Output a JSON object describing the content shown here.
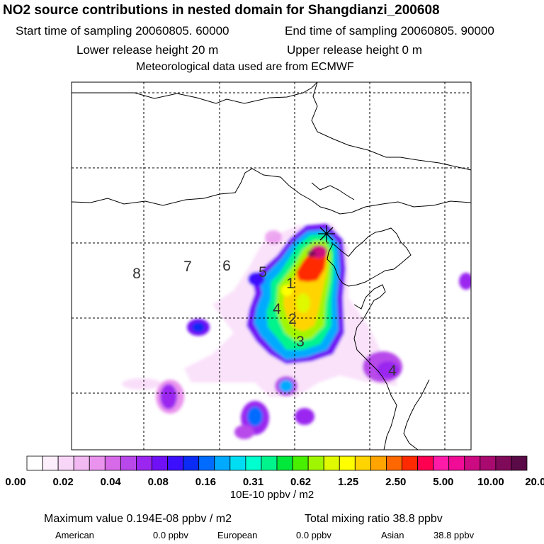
{
  "header": {
    "title": "NO2 source contributions in nested domain for Shangdianzi_200608",
    "start_time": "Start time of sampling 20060805. 60000",
    "end_time": "End time of sampling 20060805. 90000",
    "lower_height": "Lower release height   20 m",
    "upper_height": "Upper release height    0 m",
    "meteo": "Meteorological data used are from ECMWF"
  },
  "chart_data": {
    "type": "heatmap",
    "title": "NO2 source contributions in nested domain for Shangdianzi_200608",
    "colorbar": {
      "unit_label": "10E-10 ppbv / m2",
      "tick_labels": [
        "0.00",
        "0.02",
        "0.04",
        "0.08",
        "0.16",
        "0.31",
        "0.62",
        "1.25",
        "2.50",
        "5.00",
        "10.00",
        "20.00"
      ],
      "colors": [
        "#ffffff",
        "#fdeefc",
        "#f8d6f8",
        "#f2b8f2",
        "#ea93ee",
        "#d66ae8",
        "#b848ea",
        "#9a26f0",
        "#7010f6",
        "#3c10ff",
        "#0a2cf4",
        "#006cff",
        "#00aaff",
        "#00ddf2",
        "#00ffce",
        "#00f48c",
        "#00e83a",
        "#48f000",
        "#a0f600",
        "#e0f800",
        "#ffff00",
        "#ffd400",
        "#ffa400",
        "#ff6800",
        "#ff2a00",
        "#ff0050",
        "#ff1aa8",
        "#f00c96",
        "#cc0a82",
        "#a80a70",
        "#800a5a",
        "#5a0a46"
      ]
    },
    "region_labels": [
      "1",
      "2",
      "3",
      "4",
      "4",
      "5",
      "6",
      "7",
      "8"
    ],
    "receptor": "Shangdianzi",
    "grid_lines": true
  },
  "footer": {
    "max_label": "Maximum value  0.194E-08 ppbv / m2",
    "total_label": "Total mixing ratio      38.8 ppbv",
    "regions": [
      {
        "name": "American",
        "value": "0.0 ppbv"
      },
      {
        "name": "European",
        "value": "0.0 ppbv"
      },
      {
        "name": "Asian",
        "value": "38.8 ppbv"
      }
    ]
  }
}
